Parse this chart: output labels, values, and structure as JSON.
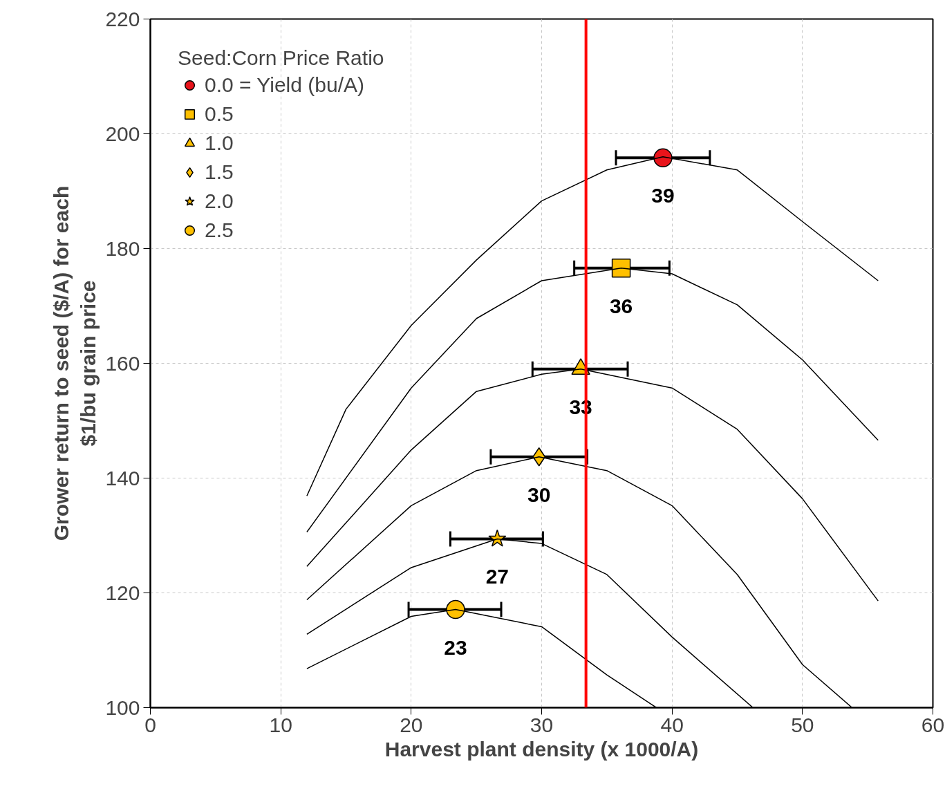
{
  "chart_data": {
    "type": "scatter",
    "xlabel": "Harvest plant density (x 1000/A)",
    "ylabel": "Grower return to seed ($/A) for each\n$1/bu grain price",
    "legend_title": "Seed:Corn Price Ratio",
    "legend": "top left",
    "grid": true,
    "xlim": [
      0,
      60
    ],
    "xticks": [
      0,
      10,
      20,
      30,
      40,
      50,
      60
    ],
    "ylim": [
      100,
      220
    ],
    "yticks": [
      100,
      120,
      140,
      160,
      180,
      200,
      220
    ],
    "series": [
      {
        "name": "0.0 = Yield (bu/A)",
        "color": "#e8141b",
        "marker": "circle",
        "x": [
          39.3
        ],
        "values": [
          195.8
        ],
        "xerrors": [
          [
            35.7,
            42.9
          ]
        ]
      },
      {
        "name": "0.5",
        "color": "#ffc000",
        "marker": "square",
        "x": [
          36.1
        ],
        "values": [
          176.6
        ],
        "xerrors": [
          [
            32.5,
            39.8
          ]
        ]
      },
      {
        "name": "1.0",
        "color": "#ffc000",
        "marker": "triangle",
        "x": [
          33.0
        ],
        "values": [
          159.0
        ],
        "xerrors": [
          [
            29.3,
            36.6
          ]
        ]
      },
      {
        "name": "1.5",
        "color": "#ffc000",
        "marker": "diamond",
        "x": [
          29.8
        ],
        "values": [
          143.7
        ],
        "xerrors": [
          [
            26.1,
            33.5
          ]
        ]
      },
      {
        "name": "2.0",
        "color": "#ffc000",
        "marker": "star",
        "x": [
          26.6
        ],
        "values": [
          129.4
        ],
        "xerrors": [
          [
            23.0,
            30.1
          ]
        ]
      },
      {
        "name": "2.5",
        "color": "#ffc000",
        "marker": "circle",
        "x": [
          23.4
        ],
        "values": [
          117.1
        ],
        "xerrors": [
          [
            19.8,
            26.9
          ]
        ]
      },
      {
        "type": "line",
        "color": "#000000",
        "x": [
          12,
          15,
          20,
          25,
          30,
          35,
          39.3,
          45,
          50,
          55.8
        ],
        "values": [
          136.9,
          152,
          166.6,
          178,
          188.3,
          193.7,
          196,
          193.7,
          184.7,
          174.4
        ]
      },
      {
        "type": "line",
        "color": "#000000",
        "x": [
          12,
          20,
          25,
          30,
          36.1,
          40,
          45,
          50,
          55.8
        ],
        "values": [
          130.6,
          155.7,
          167.8,
          174.4,
          176.6,
          175.6,
          170.2,
          160.6,
          146.6
        ]
      },
      {
        "type": "line",
        "color": "#000000",
        "x": [
          12,
          20,
          25,
          30,
          33,
          40,
          45,
          50,
          55.8
        ],
        "values": [
          124.6,
          144.9,
          155.1,
          158.1,
          159,
          155.7,
          148.5,
          136.4,
          118.6
        ]
      },
      {
        "type": "line",
        "color": "#000000",
        "x": [
          12,
          20,
          25,
          29.8,
          35,
          40,
          45,
          50,
          53.8
        ],
        "values": [
          118.8,
          135.2,
          141.3,
          143.7,
          141.3,
          135.2,
          123.2,
          107.5,
          100
        ]
      },
      {
        "type": "line",
        "color": "#000000",
        "x": [
          12,
          20,
          26.6,
          30,
          35,
          40,
          46.2
        ],
        "values": [
          112.8,
          124.4,
          129.4,
          128.6,
          123.2,
          112.3,
          100
        ]
      },
      {
        "type": "line",
        "color": "#000000",
        "x": [
          12,
          20,
          23.4,
          30,
          35,
          38.8
        ],
        "values": [
          106.8,
          115.9,
          117.1,
          114.1,
          105.7,
          100
        ]
      }
    ],
    "annotations": [
      {
        "text": "39",
        "x": 39.3,
        "y": 195.8
      },
      {
        "text": "36",
        "x": 36.1,
        "y": 176.6
      },
      {
        "text": "33",
        "x": 33.0,
        "y": 159.0
      },
      {
        "text": "30",
        "x": 29.8,
        "y": 143.7
      },
      {
        "text": "27",
        "x": 26.6,
        "y": 129.4
      },
      {
        "text": "23",
        "x": 23.4,
        "y": 117.1
      }
    ],
    "ref_lines": [
      {
        "axis": "x",
        "value": 33.4,
        "color": "#ff0000"
      }
    ]
  }
}
